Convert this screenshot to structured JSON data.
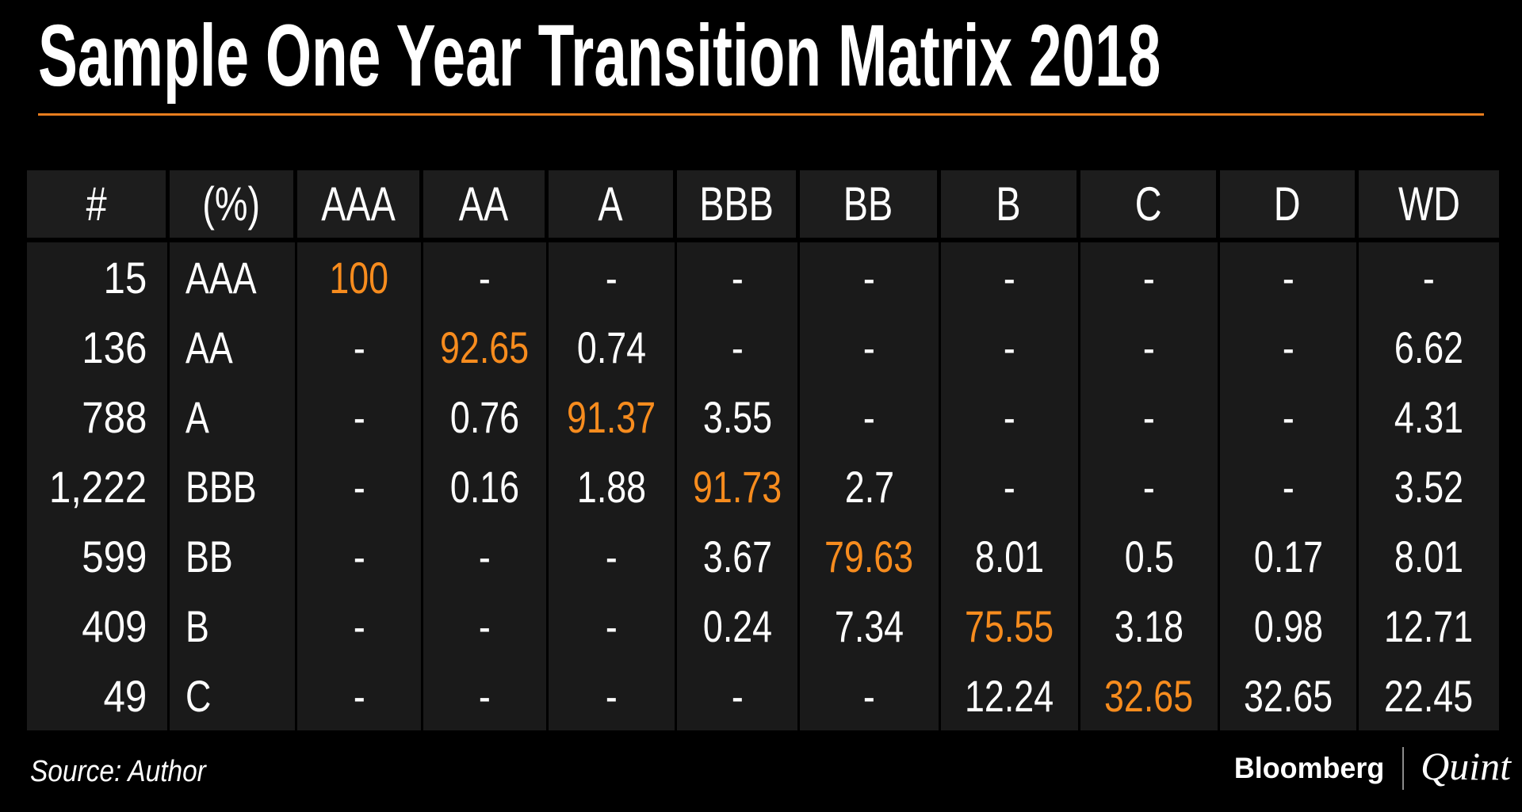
{
  "title": "Sample One Year Transition Matrix 2018",
  "source": "Source: Author",
  "branding": {
    "bloomberg": "Bloomberg",
    "quint": "Quint"
  },
  "colors": {
    "background": "#000000",
    "header_cell_bg": "#1D1D1D",
    "body_cell_bg": "#1A1A1A",
    "text": "#FFFFFF",
    "accent_orange": "#F78C1E",
    "title_rule_orange": "#E87D1E"
  },
  "chart_data": {
    "type": "table",
    "title": "Sample One Year Transition Matrix 2018",
    "columns": [
      "#",
      "(%)",
      "AAA",
      "AA",
      "A",
      "BBB",
      "BB",
      "B",
      "C",
      "D",
      "WD"
    ],
    "rows": [
      [
        "15",
        "AAA",
        "100",
        "-",
        "-",
        "-",
        "-",
        "-",
        "-",
        "-",
        "-"
      ],
      [
        "136",
        "AA",
        "-",
        "92.65",
        "0.74",
        "-",
        "-",
        "-",
        "-",
        "-",
        "6.62"
      ],
      [
        "788",
        "A",
        "-",
        "0.76",
        "91.37",
        "3.55",
        "-",
        "-",
        "-",
        "-",
        "4.31"
      ],
      [
        "1,222",
        "BBB",
        "-",
        "0.16",
        "1.88",
        "91.73",
        "2.7",
        "-",
        "-",
        "-",
        "3.52"
      ],
      [
        "599",
        "BB",
        "-",
        "-",
        "-",
        "3.67",
        "79.63",
        "8.01",
        "0.5",
        "0.17",
        "8.01"
      ],
      [
        "409",
        "B",
        "-",
        "-",
        "-",
        "0.24",
        "7.34",
        "75.55",
        "3.18",
        "0.98",
        "12.71"
      ],
      [
        "49",
        "C",
        "-",
        "-",
        "-",
        "-",
        "-",
        "12.24",
        "32.65",
        "32.65",
        "22.45"
      ]
    ],
    "highlighted_cells": {
      "color": "#F78C1E",
      "positions": [
        [
          0,
          2
        ],
        [
          1,
          3
        ],
        [
          2,
          4
        ],
        [
          3,
          5
        ],
        [
          4,
          6
        ],
        [
          5,
          7
        ],
        [
          6,
          8
        ]
      ],
      "note": "diagonal rating-retention percentages shown in orange"
    },
    "legend_position": "none",
    "grid": "vertical separators only, black gaps between dark cells"
  }
}
